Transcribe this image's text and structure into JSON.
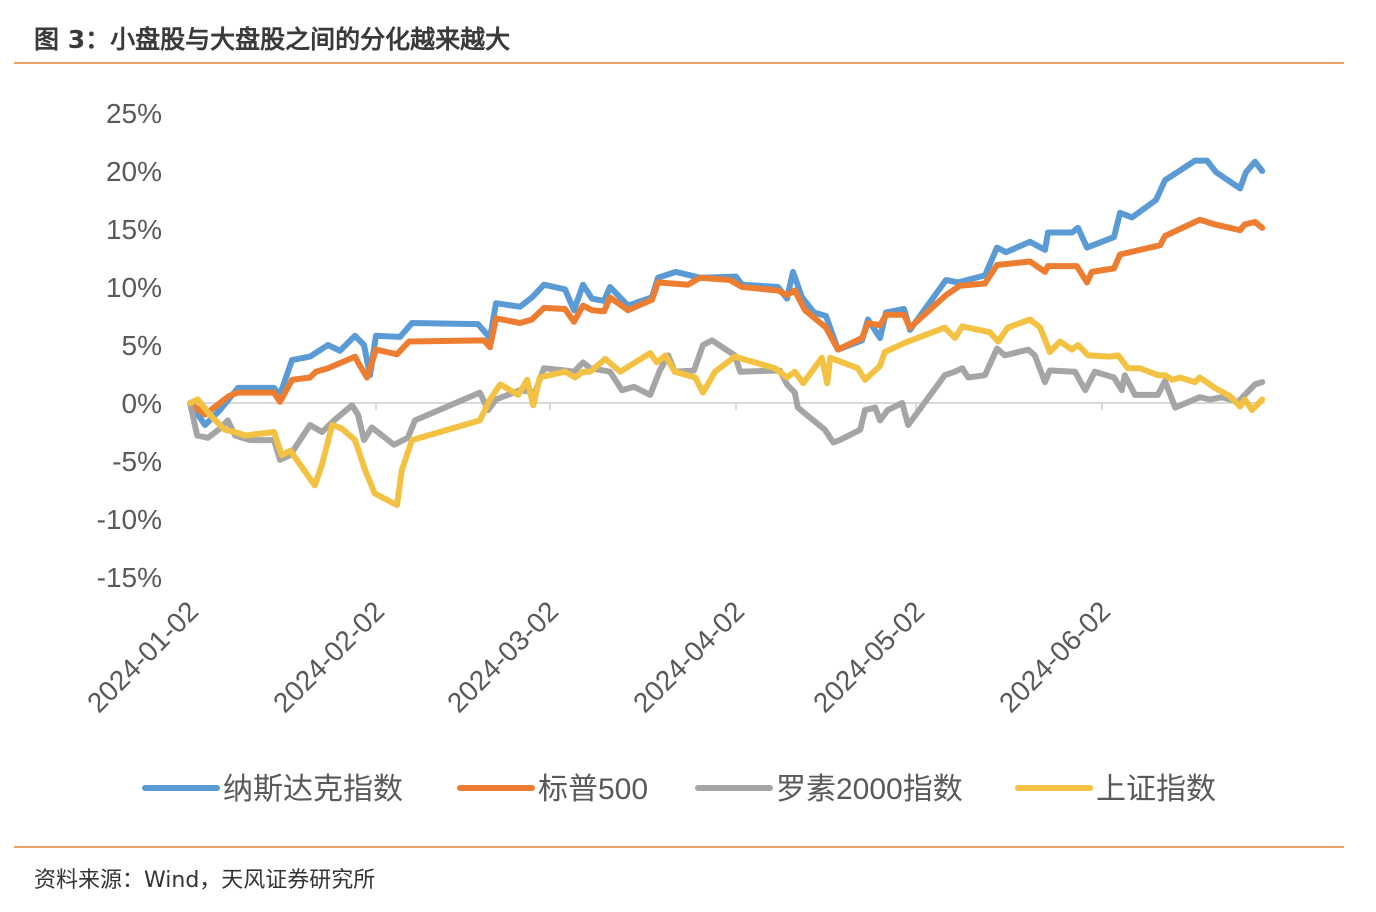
{
  "title": "图 3：小盘股与大盘股之间的分化越来越大",
  "source": "资料来源：Wind，天风证券研究所",
  "chart_data": {
    "type": "line",
    "title": "图 3：小盘股与大盘股之间的分化越来越大",
    "xlabel": "",
    "ylabel": "",
    "x_unit": "days since 2024-01-02",
    "ylim": [
      -15,
      25
    ],
    "yticks": [
      25,
      20,
      15,
      10,
      5,
      0,
      -5,
      -10,
      -15
    ],
    "ytick_labels": [
      "25%",
      "20%",
      "15%",
      "10%",
      "5%",
      "0%",
      "-5%",
      "-10%",
      "-15%"
    ],
    "xticks": [
      0,
      31,
      60,
      91,
      121,
      152
    ],
    "xtick_labels": [
      "2024-01-02",
      "2024-02-02",
      "2024-03-02",
      "2024-04-02",
      "2024-05-02",
      "2024-06-02"
    ],
    "legend_position": "bottom",
    "grid": false,
    "series": [
      {
        "name": "纳斯达克指数",
        "color": "#5b9bd5",
        "points": [
          [
            0,
            0
          ],
          [
            2.5,
            -1.9
          ],
          [
            5,
            -0.6
          ],
          [
            8,
            1.3
          ],
          [
            14,
            1.3
          ],
          [
            15,
            0.7
          ],
          [
            17,
            3.7
          ],
          [
            20,
            4
          ],
          [
            23,
            5
          ],
          [
            25,
            4.5
          ],
          [
            27.5,
            5.8
          ],
          [
            29,
            5
          ],
          [
            30,
            2.4
          ],
          [
            31,
            5.8
          ],
          [
            35,
            5.7
          ],
          [
            37,
            6.9
          ],
          [
            48,
            6.8
          ],
          [
            50,
            5.6
          ],
          [
            51,
            8.6
          ],
          [
            55,
            8.3
          ],
          [
            57,
            9.1
          ],
          [
            59,
            10.2
          ],
          [
            62.5,
            9.8
          ],
          [
            64,
            8
          ],
          [
            65.5,
            10.2
          ],
          [
            67,
            9
          ],
          [
            69,
            8.8
          ],
          [
            70,
            10
          ],
          [
            73,
            8.4
          ],
          [
            77,
            9.1
          ],
          [
            78,
            10.8
          ],
          [
            81,
            11.3
          ],
          [
            85,
            10.8
          ],
          [
            91,
            10.9
          ],
          [
            92,
            10.2
          ],
          [
            98,
            10
          ],
          [
            99.5,
            9
          ],
          [
            100.5,
            11.3
          ],
          [
            102,
            9.1
          ],
          [
            104,
            7.8
          ],
          [
            106,
            7.5
          ],
          [
            108,
            4.6
          ],
          [
            112,
            5.4
          ],
          [
            113,
            7.2
          ],
          [
            115,
            5.6
          ],
          [
            116,
            7.8
          ],
          [
            119,
            8.1
          ],
          [
            120,
            6.3
          ],
          [
            126,
            10.6
          ],
          [
            128,
            10.4
          ],
          [
            132.5,
            11
          ],
          [
            134.5,
            13.4
          ],
          [
            136,
            13
          ],
          [
            140,
            13.9
          ],
          [
            142.5,
            13.2
          ],
          [
            143,
            14.7
          ],
          [
            147,
            14.7
          ],
          [
            148,
            15.1
          ],
          [
            149.5,
            13.4
          ],
          [
            154,
            14.3
          ],
          [
            155,
            16.4
          ],
          [
            157,
            16
          ],
          [
            161,
            17.5
          ],
          [
            162.5,
            19.2
          ],
          [
            167.5,
            20.9
          ],
          [
            169.5,
            20.9
          ],
          [
            171,
            19.9
          ],
          [
            175,
            18.5
          ],
          [
            176,
            19.9
          ],
          [
            177.5,
            20.8
          ],
          [
            178.7,
            20
          ]
        ]
      },
      {
        "name": "标普500",
        "color": "#ed7d31",
        "points": [
          [
            0,
            0
          ],
          [
            2.5,
            -1
          ],
          [
            6.5,
            0.6
          ],
          [
            8,
            0.9
          ],
          [
            14,
            0.9
          ],
          [
            15,
            0.1
          ],
          [
            17,
            2
          ],
          [
            20,
            2.2
          ],
          [
            21,
            2.7
          ],
          [
            23,
            3
          ],
          [
            27.5,
            4
          ],
          [
            28,
            3.5
          ],
          [
            29.5,
            2.2
          ],
          [
            31,
            4.6
          ],
          [
            34.5,
            4.2
          ],
          [
            36.5,
            5.3
          ],
          [
            49,
            5.4
          ],
          [
            50,
            4.8
          ],
          [
            51,
            7.3
          ],
          [
            55,
            6.9
          ],
          [
            57,
            7.2
          ],
          [
            59,
            8.2
          ],
          [
            62.5,
            8.1
          ],
          [
            64,
            7
          ],
          [
            65.5,
            8.4
          ],
          [
            67,
            8
          ],
          [
            69,
            7.9
          ],
          [
            70,
            9.1
          ],
          [
            73,
            8
          ],
          [
            77,
            8.9
          ],
          [
            78,
            10.4
          ],
          [
            83,
            10.2
          ],
          [
            85,
            10.8
          ],
          [
            90,
            10.6
          ],
          [
            92,
            10
          ],
          [
            98,
            9.7
          ],
          [
            99.5,
            9.3
          ],
          [
            100.8,
            9.7
          ],
          [
            102.5,
            8
          ],
          [
            106,
            6.5
          ],
          [
            108,
            4.6
          ],
          [
            112,
            5.6
          ],
          [
            113,
            6.9
          ],
          [
            115,
            6.7
          ],
          [
            116,
            7.6
          ],
          [
            119,
            7.6
          ],
          [
            120,
            6.5
          ],
          [
            126,
            9.3
          ],
          [
            128.3,
            10.1
          ],
          [
            132.5,
            10.3
          ],
          [
            134.5,
            11.9
          ],
          [
            140,
            12.2
          ],
          [
            142.5,
            11.3
          ],
          [
            143,
            11.8
          ],
          [
            147.8,
            11.8
          ],
          [
            149.5,
            10.4
          ],
          [
            150.3,
            11.3
          ],
          [
            154,
            11.6
          ],
          [
            155,
            12.8
          ],
          [
            161.7,
            13.6
          ],
          [
            162.5,
            14.4
          ],
          [
            168.3,
            15.8
          ],
          [
            170.8,
            15.4
          ],
          [
            175,
            14.9
          ],
          [
            175.8,
            15.4
          ],
          [
            177.5,
            15.6
          ],
          [
            178.7,
            15.1
          ]
        ]
      },
      {
        "name": "罗素2000指数",
        "color": "#a5a5a5",
        "points": [
          [
            0,
            0
          ],
          [
            1.2,
            -2.8
          ],
          [
            3,
            -3
          ],
          [
            5,
            -2.2
          ],
          [
            6.3,
            -1.5
          ],
          [
            7.5,
            -2.8
          ],
          [
            10,
            -3.2
          ],
          [
            14,
            -3.2
          ],
          [
            15,
            -4.9
          ],
          [
            16.7,
            -4.5
          ],
          [
            20,
            -1.9
          ],
          [
            22,
            -2.5
          ],
          [
            24,
            -1.5
          ],
          [
            27,
            -0.2
          ],
          [
            28,
            -1
          ],
          [
            29,
            -3.2
          ],
          [
            30.3,
            -2.1
          ],
          [
            34,
            -3.6
          ],
          [
            36.3,
            -3
          ],
          [
            37.5,
            -1.5
          ],
          [
            48.3,
            0.9
          ],
          [
            49.7,
            -0.6
          ],
          [
            51,
            0.3
          ],
          [
            55,
            1.1
          ],
          [
            57.5,
            0.9
          ],
          [
            59,
            3
          ],
          [
            62.5,
            2.8
          ],
          [
            64,
            2.7
          ],
          [
            65.5,
            3.5
          ],
          [
            66.7,
            3
          ],
          [
            70,
            2.7
          ],
          [
            72,
            1.1
          ],
          [
            74,
            1.4
          ],
          [
            76.7,
            0.7
          ],
          [
            78.3,
            2.8
          ],
          [
            79.7,
            4.1
          ],
          [
            80.8,
            2.7
          ],
          [
            84,
            2.8
          ],
          [
            85.5,
            5
          ],
          [
            87,
            5.4
          ],
          [
            90.8,
            4.1
          ],
          [
            91.7,
            2.7
          ],
          [
            98.3,
            2.8
          ],
          [
            99.5,
            1.6
          ],
          [
            100.8,
            0.9
          ],
          [
            101.3,
            -0.4
          ],
          [
            105.8,
            -2.3
          ],
          [
            107.2,
            -3.4
          ],
          [
            108.3,
            -3.2
          ],
          [
            111.7,
            -2.3
          ],
          [
            112.5,
            -0.6
          ],
          [
            114.2,
            -0.4
          ],
          [
            115,
            -1.5
          ],
          [
            116.3,
            -0.6
          ],
          [
            118.7,
            0
          ],
          [
            119.7,
            -1.9
          ],
          [
            125.8,
            2.4
          ],
          [
            127.5,
            2.7
          ],
          [
            128.7,
            3
          ],
          [
            129.7,
            2.2
          ],
          [
            132.5,
            2.4
          ],
          [
            134.5,
            4.7
          ],
          [
            135.8,
            4.1
          ],
          [
            139.7,
            4.6
          ],
          [
            140.8,
            4.1
          ],
          [
            142.5,
            1.8
          ],
          [
            143.3,
            2.8
          ],
          [
            147.5,
            2.7
          ],
          [
            149.2,
            1.1
          ],
          [
            150.8,
            2.7
          ],
          [
            154,
            2.2
          ],
          [
            155.3,
            1.1
          ],
          [
            155.8,
            2.4
          ],
          [
            157.5,
            0.7
          ],
          [
            161.3,
            0.7
          ],
          [
            162.5,
            1.9
          ],
          [
            164.2,
            -0.4
          ],
          [
            168.3,
            0.5
          ],
          [
            170,
            0.3
          ],
          [
            172,
            0.5
          ],
          [
            174.7,
            0.1
          ],
          [
            175.8,
            0.7
          ],
          [
            177.5,
            1.6
          ],
          [
            178.7,
            1.8
          ]
        ]
      },
      {
        "name": "上证指数",
        "color": "#f4c242",
        "points": [
          [
            0,
            0
          ],
          [
            1.3,
            0.3
          ],
          [
            3.3,
            -1
          ],
          [
            5.8,
            -2.3
          ],
          [
            7.5,
            -2.5
          ],
          [
            9.2,
            -2.8
          ],
          [
            14,
            -2.5
          ],
          [
            15.3,
            -4.5
          ],
          [
            16.7,
            -4.1
          ],
          [
            20.8,
            -7.1
          ],
          [
            22,
            -5.3
          ],
          [
            23.7,
            -1.9
          ],
          [
            25.3,
            -2.2
          ],
          [
            27.5,
            -3.2
          ],
          [
            29.2,
            -5.8
          ],
          [
            30.8,
            -7.8
          ],
          [
            34.5,
            -8.8
          ],
          [
            35.3,
            -5.8
          ],
          [
            37,
            -3.2
          ],
          [
            48.3,
            -1.5
          ],
          [
            50,
            0.3
          ],
          [
            51.7,
            1.6
          ],
          [
            54.7,
            0.7
          ],
          [
            56.2,
            2
          ],
          [
            57.2,
            -0.2
          ],
          [
            58.3,
            2.2
          ],
          [
            62.5,
            2.7
          ],
          [
            64.2,
            2.2
          ],
          [
            65.5,
            2.7
          ],
          [
            66.7,
            2.7
          ],
          [
            69.2,
            3.8
          ],
          [
            71.7,
            2.7
          ],
          [
            76.7,
            4.3
          ],
          [
            77.8,
            3.5
          ],
          [
            79.2,
            4.1
          ],
          [
            80.8,
            2.7
          ],
          [
            84.2,
            2.2
          ],
          [
            85.5,
            0.9
          ],
          [
            87.5,
            2.7
          ],
          [
            90.8,
            4
          ],
          [
            97.5,
            3
          ],
          [
            99.5,
            2.2
          ],
          [
            100.8,
            2.7
          ],
          [
            102.2,
            1.7
          ],
          [
            105.3,
            3.9
          ],
          [
            106.2,
            1.7
          ],
          [
            106.7,
            3.9
          ],
          [
            111.3,
            3
          ],
          [
            112.5,
            2
          ],
          [
            115,
            3.2
          ],
          [
            115.8,
            4.4
          ],
          [
            119.2,
            5.2
          ],
          [
            125.8,
            6.5
          ],
          [
            127.5,
            5.6
          ],
          [
            128.7,
            6.6
          ],
          [
            133.3,
            6.1
          ],
          [
            134.7,
            5.3
          ],
          [
            136.3,
            6.5
          ],
          [
            140,
            7.2
          ],
          [
            141.7,
            6.5
          ],
          [
            143.3,
            4.4
          ],
          [
            145,
            5.3
          ],
          [
            147,
            4.6
          ],
          [
            148,
            5
          ],
          [
            149.7,
            4.1
          ],
          [
            153.3,
            4
          ],
          [
            154.7,
            4.1
          ],
          [
            156.3,
            3
          ],
          [
            158.3,
            3
          ],
          [
            161.3,
            2.4
          ],
          [
            162.5,
            2.4
          ],
          [
            163.7,
            2
          ],
          [
            165,
            2.2
          ],
          [
            167.5,
            1.8
          ],
          [
            168.3,
            2.2
          ],
          [
            170.8,
            1.3
          ],
          [
            173.3,
            0.6
          ],
          [
            175,
            -0.3
          ],
          [
            175.8,
            0.3
          ],
          [
            177,
            -0.6
          ],
          [
            178.7,
            0.3
          ]
        ]
      }
    ]
  }
}
